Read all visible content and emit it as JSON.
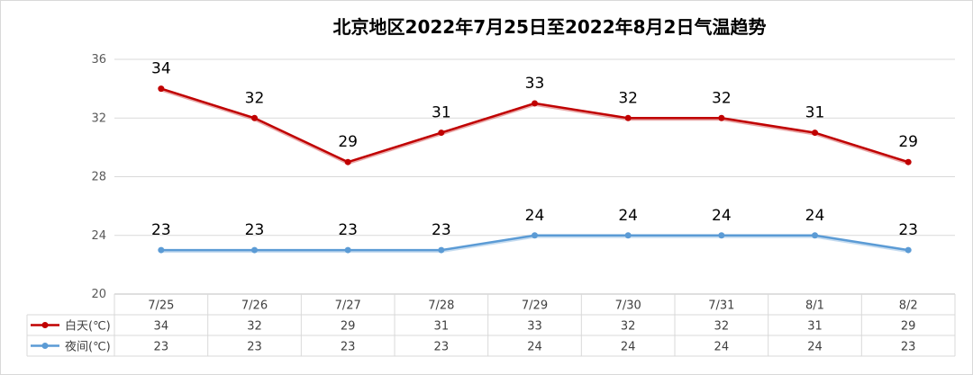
{
  "chart_data": {
    "type": "line",
    "title": "北京地区2022年7月25日至2022年8月2日气温趋势",
    "categories": [
      "7/25",
      "7/26",
      "7/27",
      "7/28",
      "7/29",
      "7/30",
      "7/31",
      "8/1",
      "8/2"
    ],
    "series": [
      {
        "name": "白天(℃)",
        "color": "#C00000",
        "values": [
          34,
          32,
          29,
          31,
          33,
          32,
          32,
          31,
          29
        ]
      },
      {
        "name": "夜间(℃)",
        "color": "#5B9BD5",
        "values": [
          23,
          23,
          23,
          23,
          24,
          24,
          24,
          24,
          23
        ]
      }
    ],
    "yticks": [
      20,
      24,
      28,
      32,
      36
    ],
    "ylim": [
      20,
      36
    ],
    "grid": true,
    "data_labels": true,
    "legend": "data-table-below"
  }
}
